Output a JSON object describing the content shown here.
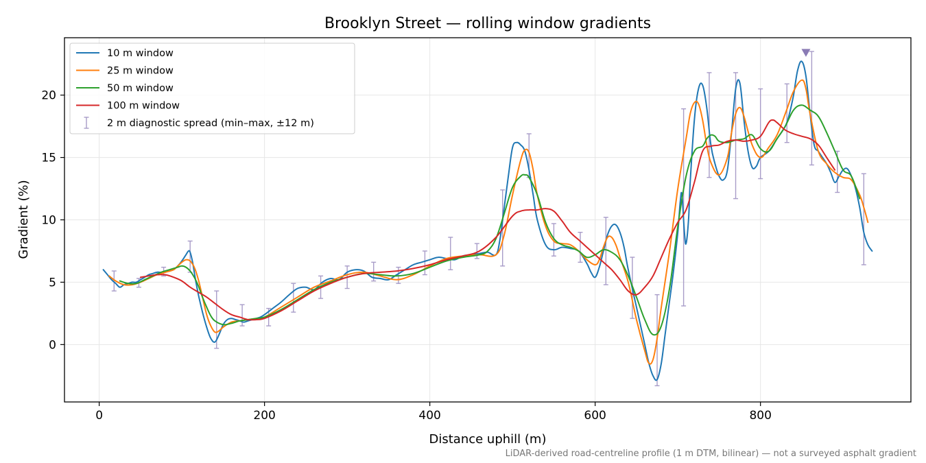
{
  "chart_data": {
    "type": "line",
    "title": "Brooklyn Street — rolling window gradients",
    "xlabel": "Distance uphill (m)",
    "ylabel": "Gradient (%)",
    "xlim": [
      -42,
      982
    ],
    "ylim": [
      -4.6,
      24.6
    ],
    "xticks": [
      0,
      200,
      400,
      600,
      800
    ],
    "yticks": [
      0,
      5,
      10,
      15,
      20
    ],
    "grid": true,
    "legend_position": "upper-left",
    "footnote": "LiDAR-derived road-centreline profile (1 m DTM, bilinear) — not a surveyed asphalt gradient",
    "series": [
      {
        "name": "10 m window",
        "color": "#1f77b4",
        "x": [
          5,
          10,
          15,
          20,
          25,
          30,
          35,
          40,
          45,
          50,
          55,
          60,
          65,
          70,
          75,
          80,
          85,
          90,
          95,
          100,
          105,
          108,
          110,
          113,
          116,
          120,
          125,
          130,
          135,
          140,
          145,
          150,
          155,
          160,
          165,
          170,
          175,
          180,
          185,
          190,
          195,
          200,
          210,
          220,
          230,
          240,
          250,
          260,
          270,
          280,
          290,
          300,
          310,
          320,
          330,
          340,
          350,
          360,
          370,
          380,
          390,
          400,
          410,
          420,
          430,
          440,
          450,
          460,
          470,
          480,
          485,
          490,
          495,
          500,
          505,
          510,
          515,
          520,
          525,
          530,
          540,
          550,
          560,
          570,
          580,
          590,
          595,
          600,
          605,
          610,
          615,
          620,
          625,
          630,
          635,
          640,
          650,
          660,
          665,
          670,
          675,
          680,
          685,
          690,
          695,
          700,
          703,
          705,
          708,
          710,
          713,
          715,
          720,
          725,
          730,
          735,
          740,
          745,
          750,
          755,
          760,
          765,
          770,
          775,
          780,
          785,
          790,
          795,
          800,
          810,
          820,
          830,
          835,
          840,
          845,
          850,
          855,
          860,
          865,
          870,
          875,
          880,
          885,
          890,
          895,
          900,
          905,
          910,
          915,
          920,
          925,
          930,
          935
        ],
        "values": [
          6.0,
          5.6,
          5.2,
          4.9,
          4.6,
          4.8,
          4.9,
          5.0,
          5.0,
          5.2,
          5.4,
          5.6,
          5.7,
          5.8,
          5.8,
          5.9,
          5.9,
          6.0,
          6.3,
          6.7,
          7.2,
          7.5,
          7.4,
          6.6,
          5.4,
          4.0,
          2.6,
          1.4,
          0.5,
          0.2,
          0.8,
          1.6,
          2.0,
          2.1,
          2.0,
          1.9,
          1.8,
          1.9,
          2.0,
          2.1,
          2.2,
          2.4,
          2.9,
          3.4,
          4.0,
          4.5,
          4.6,
          4.4,
          5.0,
          5.3,
          5.2,
          5.8,
          6.0,
          5.9,
          5.4,
          5.3,
          5.2,
          5.6,
          6.0,
          6.4,
          6.6,
          6.8,
          7.0,
          6.9,
          6.8,
          7.1,
          7.2,
          7.3,
          7.4,
          7.2,
          8.5,
          11.0,
          13.5,
          15.8,
          16.2,
          16.0,
          15.5,
          14.0,
          12.0,
          10.0,
          8.0,
          7.6,
          7.8,
          7.7,
          7.5,
          6.5,
          5.8,
          5.4,
          6.2,
          7.5,
          8.8,
          9.5,
          9.6,
          9.0,
          7.8,
          6.0,
          3.0,
          0.0,
          -1.5,
          -2.5,
          -2.8,
          -1.5,
          1.0,
          3.5,
          6.0,
          9.0,
          11.5,
          12.0,
          9.0,
          8.1,
          10.0,
          13.0,
          18.0,
          20.5,
          20.8,
          19.0,
          16.0,
          14.5,
          13.5,
          13.2,
          14.0,
          17.0,
          20.5,
          21.0,
          18.0,
          15.5,
          14.2,
          14.3,
          15.0,
          15.5,
          16.5,
          17.5,
          18.5,
          20.0,
          22.0,
          22.7,
          21.5,
          18.5,
          16.0,
          15.5,
          15.0,
          14.5,
          13.8,
          13.0,
          13.5,
          14.0,
          14.1,
          13.5,
          12.5,
          11.0,
          9.0,
          8.0,
          7.5
        ]
      },
      {
        "name": "25 m window",
        "color": "#ff7f0e",
        "x": [
          12,
          20,
          30,
          40,
          50,
          60,
          70,
          80,
          90,
          95,
          100,
          105,
          110,
          115,
          120,
          125,
          130,
          135,
          140,
          145,
          150,
          160,
          170,
          180,
          190,
          200,
          220,
          240,
          260,
          280,
          300,
          320,
          340,
          360,
          380,
          400,
          420,
          440,
          460,
          480,
          490,
          500,
          510,
          515,
          520,
          525,
          530,
          540,
          550,
          560,
          570,
          580,
          590,
          600,
          605,
          610,
          615,
          620,
          625,
          630,
          640,
          650,
          660,
          665,
          670,
          675,
          680,
          690,
          700,
          710,
          715,
          720,
          725,
          730,
          735,
          740,
          750,
          760,
          765,
          770,
          775,
          780,
          790,
          800,
          810,
          820,
          830,
          840,
          850,
          855,
          860,
          870,
          880,
          890,
          900,
          910,
          920,
          925,
          930
        ],
        "values": [
          5.5,
          5.1,
          4.8,
          4.8,
          5.0,
          5.3,
          5.6,
          5.8,
          6.0,
          6.3,
          6.6,
          6.8,
          6.7,
          6.2,
          5.2,
          3.8,
          2.4,
          1.5,
          1.0,
          1.1,
          1.4,
          1.8,
          1.9,
          2.0,
          2.1,
          2.2,
          3.0,
          3.8,
          4.6,
          5.1,
          5.6,
          5.8,
          5.5,
          5.2,
          5.6,
          6.3,
          6.9,
          7.1,
          7.2,
          7.2,
          8.8,
          12.0,
          14.8,
          15.6,
          15.4,
          14.0,
          12.0,
          9.5,
          8.3,
          8.1,
          8.0,
          7.5,
          6.8,
          6.4,
          6.8,
          7.8,
          8.6,
          8.6,
          8.0,
          7.0,
          5.0,
          2.0,
          -0.5,
          -1.5,
          -1.2,
          0.5,
          3.0,
          7.5,
          12.5,
          16.5,
          18.5,
          19.4,
          19.3,
          18.0,
          16.0,
          14.6,
          13.6,
          15.0,
          17.0,
          18.5,
          19.0,
          18.3,
          16.0,
          15.0,
          15.8,
          16.8,
          18.5,
          20.3,
          21.2,
          20.5,
          18.5,
          15.5,
          14.5,
          13.8,
          13.4,
          13.2,
          12.0,
          11.0,
          9.8
        ]
      },
      {
        "name": "50 m window",
        "color": "#2ca02c",
        "x": [
          25,
          35,
          45,
          55,
          65,
          75,
          85,
          95,
          100,
          105,
          110,
          115,
          120,
          125,
          130,
          135,
          140,
          150,
          160,
          170,
          180,
          190,
          200,
          220,
          240,
          260,
          280,
          300,
          320,
          340,
          360,
          380,
          400,
          420,
          440,
          460,
          470,
          480,
          490,
          500,
          510,
          515,
          520,
          530,
          540,
          550,
          560,
          570,
          580,
          590,
          600,
          610,
          620,
          630,
          640,
          650,
          660,
          670,
          680,
          690,
          700,
          710,
          720,
          730,
          735,
          740,
          745,
          750,
          760,
          770,
          780,
          790,
          800,
          810,
          820,
          830,
          840,
          850,
          860,
          870,
          880,
          890,
          900,
          910,
          920
        ],
        "values": [
          5.1,
          4.9,
          4.9,
          5.2,
          5.5,
          5.8,
          6.0,
          6.2,
          6.3,
          6.2,
          5.9,
          5.4,
          4.7,
          3.8,
          3.0,
          2.3,
          1.9,
          1.6,
          1.7,
          1.9,
          2.0,
          2.1,
          2.2,
          2.8,
          3.6,
          4.4,
          5.0,
          5.4,
          5.7,
          5.6,
          5.5,
          5.7,
          6.2,
          6.7,
          7.0,
          7.2,
          7.5,
          8.5,
          10.5,
          12.6,
          13.5,
          13.6,
          13.4,
          12.0,
          9.8,
          8.5,
          8.0,
          7.8,
          7.5,
          7.0,
          7.2,
          7.6,
          7.4,
          6.8,
          5.5,
          3.8,
          2.0,
          0.8,
          1.5,
          4.5,
          9.5,
          13.5,
          15.5,
          15.9,
          16.5,
          16.8,
          16.7,
          16.3,
          16.2,
          16.4,
          16.5,
          16.8,
          15.7,
          15.5,
          16.5,
          17.5,
          18.8,
          19.2,
          18.8,
          18.3,
          17.0,
          15.5,
          14.0,
          13.5,
          11.7
        ]
      },
      {
        "name": "100 m window",
        "color": "#d62728",
        "x": [
          50,
          60,
          70,
          80,
          90,
          100,
          110,
          120,
          130,
          140,
          150,
          160,
          170,
          180,
          190,
          200,
          220,
          240,
          260,
          280,
          300,
          320,
          340,
          360,
          380,
          400,
          420,
          440,
          460,
          480,
          500,
          510,
          520,
          530,
          540,
          550,
          560,
          570,
          580,
          590,
          600,
          610,
          620,
          630,
          640,
          650,
          660,
          670,
          680,
          690,
          700,
          710,
          720,
          730,
          740,
          750,
          760,
          770,
          780,
          790,
          800,
          810,
          815,
          820,
          830,
          840,
          850,
          860,
          870,
          880,
          890
        ],
        "values": [
          5.4,
          5.5,
          5.6,
          5.6,
          5.4,
          5.1,
          4.6,
          4.2,
          3.8,
          3.3,
          2.8,
          2.4,
          2.2,
          2.0,
          2.0,
          2.1,
          2.7,
          3.5,
          4.3,
          4.9,
          5.4,
          5.7,
          5.8,
          5.9,
          6.1,
          6.4,
          6.8,
          7.1,
          7.5,
          8.6,
          10.3,
          10.7,
          10.8,
          10.8,
          10.9,
          10.7,
          9.9,
          9.0,
          8.4,
          7.8,
          7.2,
          6.6,
          6.0,
          5.2,
          4.3,
          4.0,
          4.6,
          5.5,
          7.0,
          8.5,
          9.8,
          10.8,
          13.0,
          15.5,
          15.9,
          16.0,
          16.3,
          16.4,
          16.3,
          16.4,
          16.7,
          17.8,
          18.0,
          17.8,
          17.2,
          16.9,
          16.7,
          16.5,
          16.0,
          15.0,
          14.0
        ]
      }
    ],
    "spread": {
      "name": "2 m diagnostic spread (min–max, ±12 m)",
      "color": "#a89cc8",
      "points": [
        {
          "x": 18,
          "min": 4.3,
          "max": 5.9
        },
        {
          "x": 48,
          "min": 4.6,
          "max": 5.3
        },
        {
          "x": 78,
          "min": 5.5,
          "max": 6.2
        },
        {
          "x": 110,
          "min": 5.8,
          "max": 8.3
        },
        {
          "x": 142,
          "min": -0.3,
          "max": 4.3
        },
        {
          "x": 173,
          "min": 1.5,
          "max": 3.2
        },
        {
          "x": 205,
          "min": 1.5,
          "max": 2.9
        },
        {
          "x": 235,
          "min": 2.6,
          "max": 4.9
        },
        {
          "x": 268,
          "min": 3.7,
          "max": 5.5
        },
        {
          "x": 300,
          "min": 4.5,
          "max": 6.3
        },
        {
          "x": 332,
          "min": 5.1,
          "max": 6.6
        },
        {
          "x": 362,
          "min": 4.9,
          "max": 6.2
        },
        {
          "x": 394,
          "min": 5.6,
          "max": 7.5
        },
        {
          "x": 425,
          "min": 6.0,
          "max": 8.6
        },
        {
          "x": 457,
          "min": 6.9,
          "max": 8.1
        },
        {
          "x": 488,
          "min": 6.3,
          "max": 12.4
        },
        {
          "x": 520,
          "min": 13.4,
          "max": 16.9
        },
        {
          "x": 550,
          "min": 7.1,
          "max": 9.7
        },
        {
          "x": 582,
          "min": 6.6,
          "max": 9.0
        },
        {
          "x": 613,
          "min": 4.8,
          "max": 10.2
        },
        {
          "x": 645,
          "min": 2.1,
          "max": 7.0
        },
        {
          "x": 675,
          "min": -3.3,
          "max": 4.0
        },
        {
          "x": 707,
          "min": 3.1,
          "max": 18.9
        },
        {
          "x": 738,
          "min": 13.4,
          "max": 21.8
        },
        {
          "x": 770,
          "min": 11.7,
          "max": 21.8
        },
        {
          "x": 800,
          "min": 13.3,
          "max": 20.5
        },
        {
          "x": 832,
          "min": 16.2,
          "max": 20.9
        },
        {
          "x": 862,
          "min": 14.4,
          "max": 23.5
        },
        {
          "x": 893,
          "min": 12.2,
          "max": 15.5
        },
        {
          "x": 925,
          "min": 6.4,
          "max": 13.7
        }
      ]
    },
    "peak_marker": {
      "x": 855,
      "y": 23.4,
      "color": "#8a7bb5"
    }
  }
}
